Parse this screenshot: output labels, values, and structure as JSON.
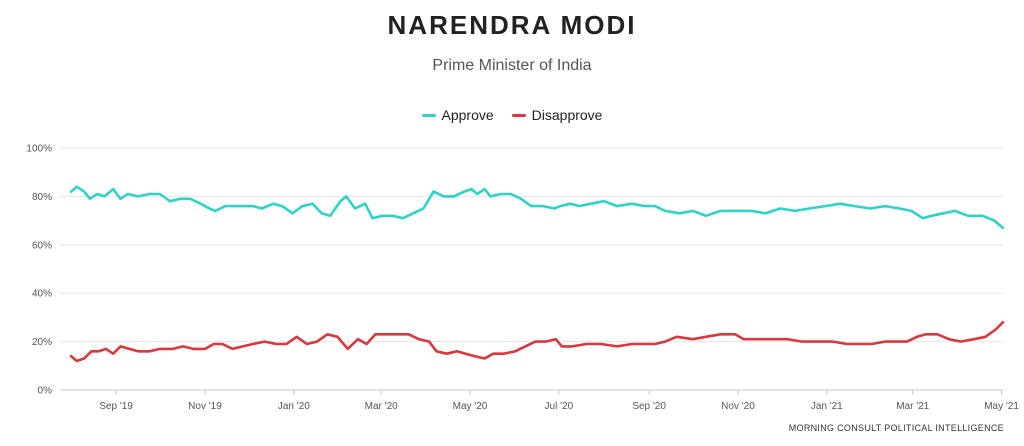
{
  "title": "NARENDRA MODI",
  "subtitle": "Prime Minister of India",
  "footer": "MORNING CONSULT POLITICAL INTELLIGENCE",
  "chart_data": {
    "type": "line",
    "title": "NARENDRA MODI",
    "subtitle": "Prime Minister of India",
    "ylim": [
      0,
      100
    ],
    "y_ticks": [
      0,
      20,
      40,
      60,
      80,
      100
    ],
    "y_tick_labels": [
      "0%",
      "20%",
      "40%",
      "60%",
      "80%",
      "100%"
    ],
    "x_tick_labels": [
      "Sep '19",
      "Nov '19",
      "Jan '20",
      "Mar '20",
      "May '20",
      "Jul '20",
      "Sep '20",
      "Nov '20",
      "Jan '21",
      "Mar '21",
      "May '21"
    ],
    "x_tick_dates": [
      "2019-09-01",
      "2019-11-01",
      "2020-01-01",
      "2020-03-01",
      "2020-05-01",
      "2020-07-01",
      "2020-09-01",
      "2020-11-01",
      "2021-01-01",
      "2021-03-01",
      "2021-05-01"
    ],
    "x_range": [
      "2019-08-01",
      "2021-05-02"
    ],
    "grid": true,
    "legend_position": "top-center",
    "series": [
      {
        "name": "Approve",
        "color": "#2ed3c6",
        "points": [
          [
            "2019-08-01",
            82
          ],
          [
            "2019-08-05",
            84
          ],
          [
            "2019-08-10",
            82
          ],
          [
            "2019-08-14",
            79
          ],
          [
            "2019-08-19",
            81
          ],
          [
            "2019-08-24",
            80
          ],
          [
            "2019-08-30",
            83
          ],
          [
            "2019-09-04",
            79
          ],
          [
            "2019-09-09",
            81
          ],
          [
            "2019-09-16",
            80
          ],
          [
            "2019-09-24",
            81
          ],
          [
            "2019-10-01",
            81
          ],
          [
            "2019-10-08",
            78
          ],
          [
            "2019-10-15",
            79
          ],
          [
            "2019-10-22",
            79
          ],
          [
            "2019-10-29",
            77
          ],
          [
            "2019-11-04",
            75
          ],
          [
            "2019-11-08",
            74
          ],
          [
            "2019-11-15",
            76
          ],
          [
            "2019-11-25",
            76
          ],
          [
            "2019-12-04",
            76
          ],
          [
            "2019-12-10",
            75
          ],
          [
            "2019-12-18",
            77
          ],
          [
            "2019-12-24",
            76
          ],
          [
            "2019-12-31",
            73
          ],
          [
            "2020-01-07",
            76
          ],
          [
            "2020-01-14",
            77
          ],
          [
            "2020-01-20",
            73
          ],
          [
            "2020-01-26",
            72
          ],
          [
            "2020-02-02",
            78
          ],
          [
            "2020-02-06",
            80
          ],
          [
            "2020-02-12",
            75
          ],
          [
            "2020-02-19",
            77
          ],
          [
            "2020-02-24",
            71
          ],
          [
            "2020-03-02",
            72
          ],
          [
            "2020-03-09",
            72
          ],
          [
            "2020-03-16",
            71
          ],
          [
            "2020-03-23",
            73
          ],
          [
            "2020-03-30",
            75
          ],
          [
            "2020-04-06",
            82
          ],
          [
            "2020-04-13",
            80
          ],
          [
            "2020-04-20",
            80
          ],
          [
            "2020-04-27",
            82
          ],
          [
            "2020-05-02",
            83
          ],
          [
            "2020-05-06",
            81
          ],
          [
            "2020-05-11",
            83
          ],
          [
            "2020-05-15",
            80
          ],
          [
            "2020-05-22",
            81
          ],
          [
            "2020-05-29",
            81
          ],
          [
            "2020-06-05",
            79
          ],
          [
            "2020-06-12",
            76
          ],
          [
            "2020-06-20",
            76
          ],
          [
            "2020-06-28",
            75
          ],
          [
            "2020-07-02",
            76
          ],
          [
            "2020-07-09",
            77
          ],
          [
            "2020-07-15",
            76
          ],
          [
            "2020-07-23",
            77
          ],
          [
            "2020-08-01",
            78
          ],
          [
            "2020-08-10",
            76
          ],
          [
            "2020-08-20",
            77
          ],
          [
            "2020-08-29",
            76
          ],
          [
            "2020-09-05",
            76
          ],
          [
            "2020-09-12",
            74
          ],
          [
            "2020-09-22",
            73
          ],
          [
            "2020-10-01",
            74
          ],
          [
            "2020-10-10",
            72
          ],
          [
            "2020-10-20",
            74
          ],
          [
            "2020-10-30",
            74
          ],
          [
            "2020-11-10",
            74
          ],
          [
            "2020-11-20",
            73
          ],
          [
            "2020-11-30",
            75
          ],
          [
            "2020-12-10",
            74
          ],
          [
            "2020-12-20",
            75
          ],
          [
            "2020-12-31",
            76
          ],
          [
            "2021-01-10",
            77
          ],
          [
            "2021-01-20",
            76
          ],
          [
            "2021-01-31",
            75
          ],
          [
            "2021-02-10",
            76
          ],
          [
            "2021-02-20",
            75
          ],
          [
            "2021-02-28",
            74
          ],
          [
            "2021-03-08",
            71
          ],
          [
            "2021-03-14",
            72
          ],
          [
            "2021-03-22",
            73
          ],
          [
            "2021-03-30",
            74
          ],
          [
            "2021-04-08",
            72
          ],
          [
            "2021-04-18",
            72
          ],
          [
            "2021-04-26",
            70
          ],
          [
            "2021-05-02",
            67
          ]
        ]
      },
      {
        "name": "Disapprove",
        "color": "#d9383e",
        "points": [
          [
            "2019-08-01",
            14
          ],
          [
            "2019-08-05",
            12
          ],
          [
            "2019-08-10",
            13
          ],
          [
            "2019-08-15",
            16
          ],
          [
            "2019-08-20",
            16
          ],
          [
            "2019-08-25",
            17
          ],
          [
            "2019-08-30",
            15
          ],
          [
            "2019-09-04",
            18
          ],
          [
            "2019-09-10",
            17
          ],
          [
            "2019-09-16",
            16
          ],
          [
            "2019-09-24",
            16
          ],
          [
            "2019-10-01",
            17
          ],
          [
            "2019-10-10",
            17
          ],
          [
            "2019-10-17",
            18
          ],
          [
            "2019-10-24",
            17
          ],
          [
            "2019-11-01",
            17
          ],
          [
            "2019-11-07",
            19
          ],
          [
            "2019-11-13",
            19
          ],
          [
            "2019-11-20",
            17
          ],
          [
            "2019-11-27",
            18
          ],
          [
            "2019-12-04",
            19
          ],
          [
            "2019-12-12",
            20
          ],
          [
            "2019-12-20",
            19
          ],
          [
            "2019-12-27",
            19
          ],
          [
            "2020-01-03",
            22
          ],
          [
            "2020-01-10",
            19
          ],
          [
            "2020-01-17",
            20
          ],
          [
            "2020-01-24",
            23
          ],
          [
            "2020-01-31",
            22
          ],
          [
            "2020-02-07",
            17
          ],
          [
            "2020-02-14",
            21
          ],
          [
            "2020-02-20",
            19
          ],
          [
            "2020-02-26",
            23
          ],
          [
            "2020-03-03",
            23
          ],
          [
            "2020-03-12",
            23
          ],
          [
            "2020-03-20",
            23
          ],
          [
            "2020-03-27",
            21
          ],
          [
            "2020-04-03",
            20
          ],
          [
            "2020-04-08",
            16
          ],
          [
            "2020-04-15",
            15
          ],
          [
            "2020-04-22",
            16
          ],
          [
            "2020-04-28",
            15
          ],
          [
            "2020-05-04",
            14
          ],
          [
            "2020-05-11",
            13
          ],
          [
            "2020-05-17",
            15
          ],
          [
            "2020-05-24",
            15
          ],
          [
            "2020-06-01",
            16
          ],
          [
            "2020-06-08",
            18
          ],
          [
            "2020-06-15",
            20
          ],
          [
            "2020-06-22",
            20
          ],
          [
            "2020-06-29",
            21
          ],
          [
            "2020-07-03",
            18
          ],
          [
            "2020-07-10",
            18
          ],
          [
            "2020-07-20",
            19
          ],
          [
            "2020-07-30",
            19
          ],
          [
            "2020-08-10",
            18
          ],
          [
            "2020-08-20",
            19
          ],
          [
            "2020-08-30",
            19
          ],
          [
            "2020-09-05",
            19
          ],
          [
            "2020-09-12",
            20
          ],
          [
            "2020-09-20",
            22
          ],
          [
            "2020-10-01",
            21
          ],
          [
            "2020-10-10",
            22
          ],
          [
            "2020-10-20",
            23
          ],
          [
            "2020-10-30",
            23
          ],
          [
            "2020-11-05",
            21
          ],
          [
            "2020-11-15",
            21
          ],
          [
            "2020-11-25",
            21
          ],
          [
            "2020-12-05",
            21
          ],
          [
            "2020-12-15",
            20
          ],
          [
            "2020-12-25",
            20
          ],
          [
            "2021-01-05",
            20
          ],
          [
            "2021-01-15",
            19
          ],
          [
            "2021-01-25",
            19
          ],
          [
            "2021-02-01",
            19
          ],
          [
            "2021-02-10",
            20
          ],
          [
            "2021-02-18",
            20
          ],
          [
            "2021-02-25",
            20
          ],
          [
            "2021-03-04",
            22
          ],
          [
            "2021-03-10",
            23
          ],
          [
            "2021-03-18",
            23
          ],
          [
            "2021-03-26",
            21
          ],
          [
            "2021-04-03",
            20
          ],
          [
            "2021-04-12",
            21
          ],
          [
            "2021-04-20",
            22
          ],
          [
            "2021-04-27",
            25
          ],
          [
            "2021-05-02",
            28
          ]
        ]
      }
    ]
  }
}
